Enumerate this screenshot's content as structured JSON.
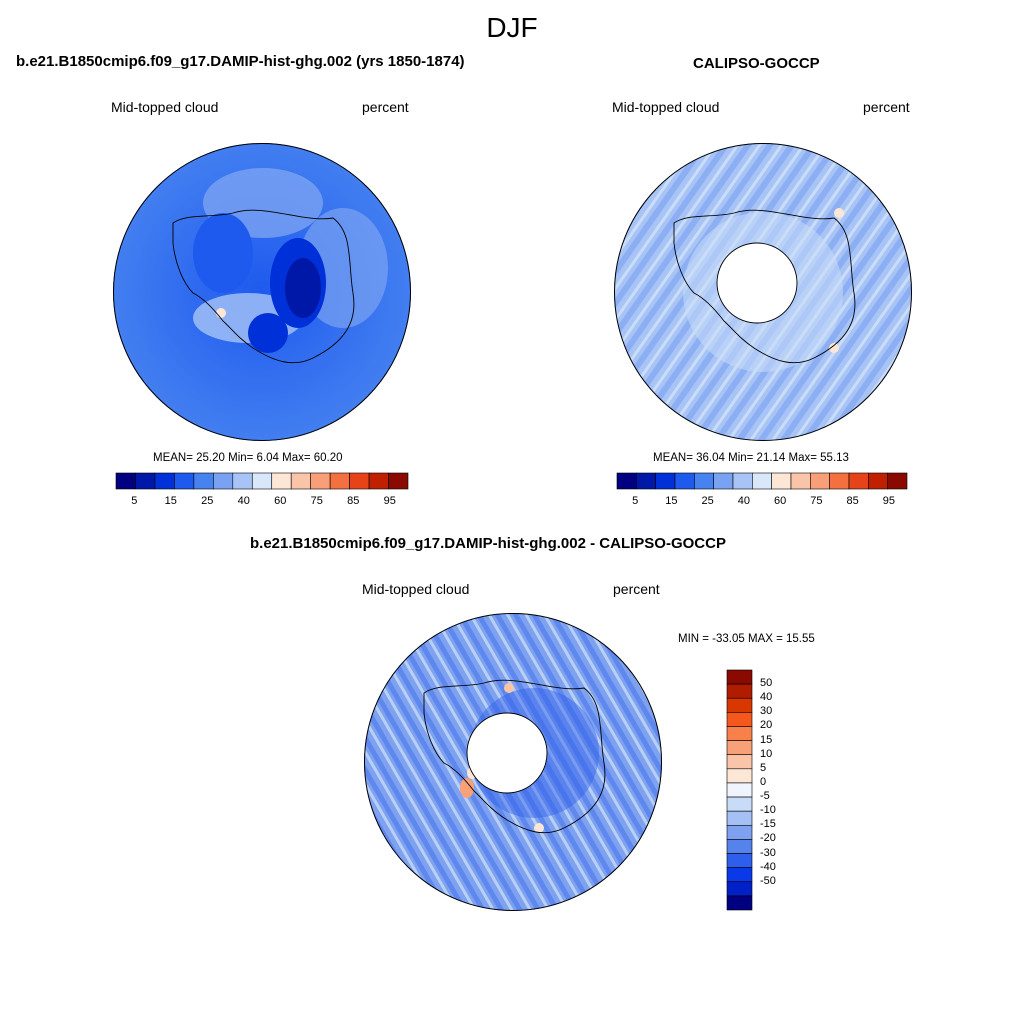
{
  "page": {
    "title": "DJF"
  },
  "panels": [
    {
      "title": "b.e21.B1850cmip6.f09_g17.DAMIP-hist-ghg.002 (yrs 1850-1874)",
      "left_label": "Mid-topped cloud",
      "right_label": "percent",
      "stats": "MEAN=  25.20  Min=   6.04  Max=  60.20",
      "has_pole_hole": false
    },
    {
      "title": "CALIPSO-GOCCP",
      "left_label": "Mid-topped cloud",
      "right_label": "percent",
      "stats": "MEAN=  36.04  Min=  21.14  Max=  55.13",
      "has_pole_hole": true
    },
    {
      "title": "b.e21.B1850cmip6.f09_g17.DAMIP-hist-ghg.002 - CALIPSO-GOCCP",
      "left_label": "Mid-topped cloud",
      "right_label": "percent",
      "stats": "MIN = -33.05 MAX =  15.55",
      "has_pole_hole": true
    }
  ],
  "colorbars": {
    "horizontal": {
      "colors": [
        "#000080",
        "#0018a8",
        "#0030d8",
        "#1e5aee",
        "#4682f0",
        "#7aa2f2",
        "#a8c4f6",
        "#d8e8fa",
        "#fce6d6",
        "#fac4a8",
        "#f89e78",
        "#f47040",
        "#e64418",
        "#c02000",
        "#8a0a00"
      ],
      "tick_labels": [
        "5",
        "15",
        "25",
        "40",
        "60",
        "75",
        "85",
        "95"
      ]
    },
    "vertical": {
      "colors_top_to_bottom": [
        "#8a0a00",
        "#b01c00",
        "#d83800",
        "#f4581c",
        "#f8804a",
        "#f8a078",
        "#fac4a8",
        "#fce6d6",
        "#f0f4fc",
        "#c8dcf8",
        "#a4c0f4",
        "#7ea2f0",
        "#5682ec",
        "#2e5eec",
        "#0a3ae8",
        "#0020c8",
        "#000080"
      ],
      "tick_labels": [
        "50",
        "40",
        "30",
        "20",
        "15",
        "10",
        "5",
        "0",
        "-5",
        "-10",
        "-15",
        "-20",
        "-30",
        "-40",
        "-50"
      ]
    }
  }
}
